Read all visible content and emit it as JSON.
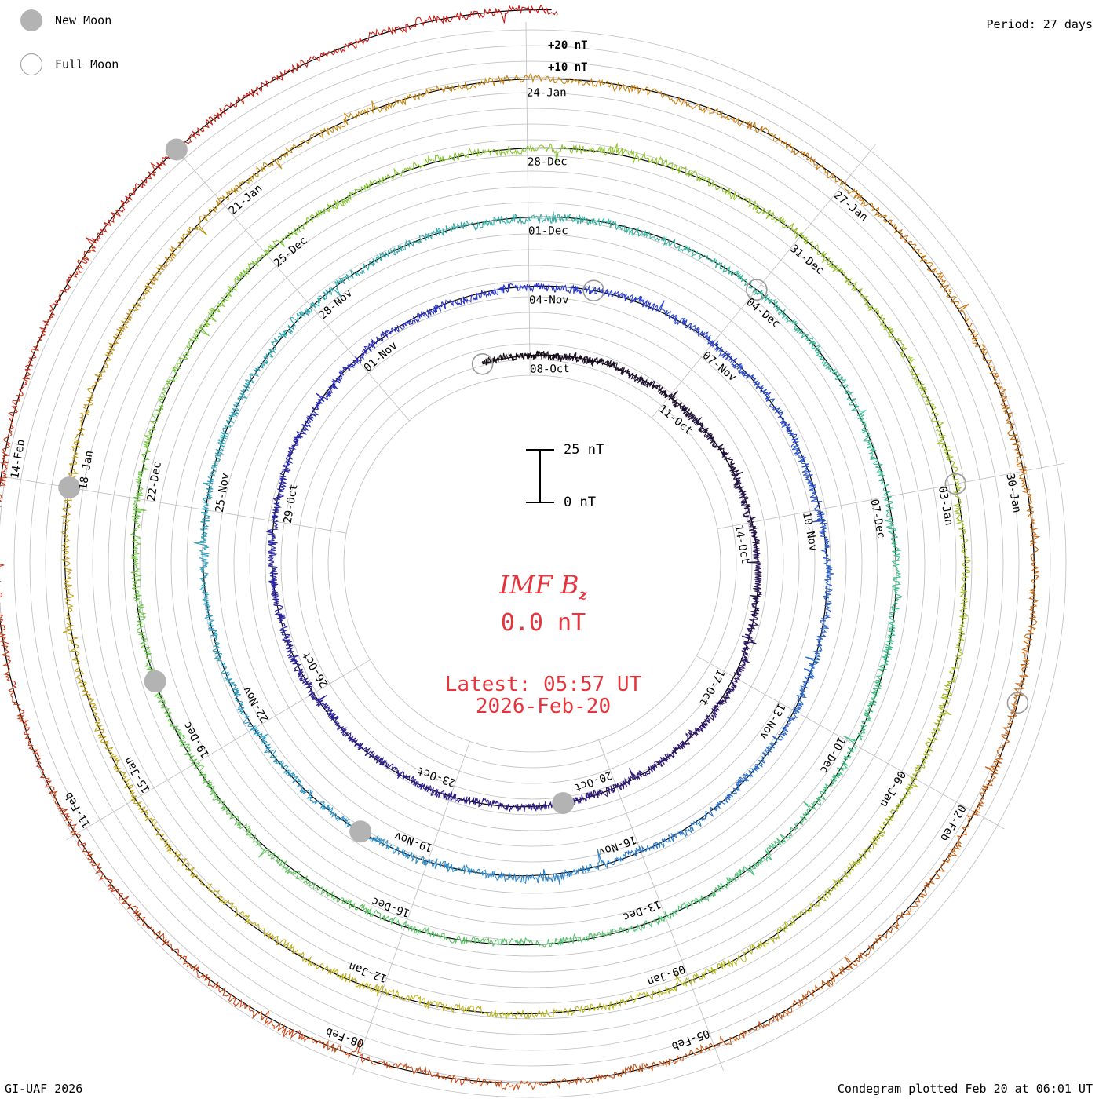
{
  "header": {
    "period": "Period: 27 days"
  },
  "legend": {
    "new_moon": "New Moon",
    "full_moon": "Full Moon"
  },
  "footer": {
    "credit": "GI-UAF 2026",
    "plotted": "Condegram plotted Feb 20 at 06:01 UT"
  },
  "center": {
    "title_main": "IMF B",
    "title_sub": "z",
    "value": "0.0 nT",
    "latest_line1": "Latest: 05:57 UT",
    "latest_line2": "2026-Feb-20"
  },
  "scale_bar": {
    "top_label": "25 nT",
    "bottom_label": "0 nT"
  },
  "colors": {
    "title_red": "#e8323c",
    "grid": "#bdbdbd",
    "baseline": "#000000",
    "new_moon_fill": "#b3b3b3"
  },
  "chart_data": {
    "type": "spiral condegram",
    "title": "IMF Bz",
    "period_days": 27,
    "start_date": "2025-10-07",
    "end_date": "2026-02-20",
    "outer_ticks": [
      "+20 nT",
      "+10 nT"
    ],
    "date_labels": [
      "08-Oct",
      "11-Oct",
      "14-Oct",
      "17-Oct",
      "20-Oct",
      "23-Oct",
      "26-Oct",
      "29-Oct",
      "01-Nov",
      "04-Nov",
      "07-Nov",
      "10-Nov",
      "13-Nov",
      "16-Nov",
      "19-Nov",
      "22-Nov",
      "25-Nov",
      "28-Nov",
      "01-Dec",
      "04-Dec",
      "07-Dec",
      "10-Dec",
      "13-Dec",
      "16-Dec",
      "19-Dec",
      "22-Dec",
      "25-Dec",
      "28-Dec",
      "31-Dec",
      "03-Jan",
      "06-Jan",
      "09-Jan",
      "12-Jan",
      "15-Jan",
      "18-Jan",
      "21-Jan",
      "24-Jan",
      "27-Jan",
      "30-Jan",
      "02-Feb",
      "05-Feb",
      "08-Feb",
      "11-Feb",
      "14-Feb"
    ],
    "new_moon_dates": [
      "2025-10-21",
      "2025-11-20",
      "2025-12-20",
      "2026-01-18",
      "2026-02-17"
    ],
    "full_moon_dates": [
      "2025-10-07",
      "2025-11-05",
      "2025-12-04",
      "2026-01-03",
      "2026-02-01"
    ],
    "latest_value_nT": 0.0,
    "latest_time": "05:57 UT"
  }
}
